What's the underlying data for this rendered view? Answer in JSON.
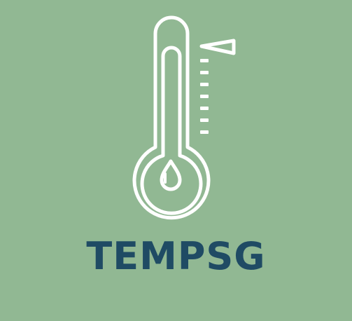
{
  "logo": {
    "wordmark": "TEMPSG",
    "icon": "thermometer-icon",
    "colors": {
      "background": "#91b893",
      "icon_stroke": "#ffffff",
      "wordmark": "#1f4b64"
    }
  }
}
